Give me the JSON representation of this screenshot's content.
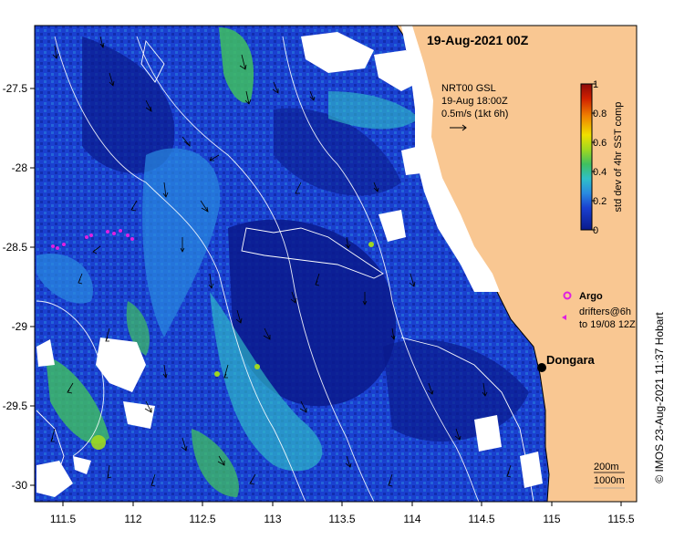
{
  "map": {
    "title": "19-Aug-2021 00Z",
    "current_legend": {
      "line1": "NRT00 GSL",
      "line2": "19-Aug 18:00Z",
      "line3": "0.5m/s (1kt 6h)"
    },
    "colorbar": {
      "label": "std dev of 4hr SST comp",
      "ticks": [
        "0",
        "0.2",
        "0.4",
        "0.6",
        "0.8",
        "1"
      ],
      "colors": [
        "#0a1a8c",
        "#1a40d0",
        "#2a8ae0",
        "#30c0c8",
        "#40c060",
        "#a0d820",
        "#f0e000",
        "#f08000",
        "#d02000",
        "#8c0a0a"
      ]
    },
    "argo_label": "Argo",
    "drifter_label_1": "drifters@6h",
    "drifter_label_2": "to 19/08 12Z",
    "place_label": "Dongara",
    "depth_label_1": "200m",
    "depth_label_2": "1000m",
    "credit": "© IMOS 23-Aug-2021 11:37 Hobart",
    "x_ticks": [
      "111.5",
      "112",
      "112.5",
      "113",
      "113.5",
      "114",
      "114.5",
      "115",
      "115.5"
    ],
    "y_ticks": [
      "-27.5",
      "-28",
      "-28.5",
      "-29",
      "-29.5",
      "-30"
    ],
    "colors": {
      "land": "#f9c792",
      "ocean_deep": "#0a1a8c",
      "ocean_mid": "#1a40d0",
      "ocean_light": "#2a8ae0",
      "cyan": "#30c0c8",
      "green": "#40c060",
      "yellow_green": "#a0d820",
      "argo": "#e020e0"
    }
  }
}
